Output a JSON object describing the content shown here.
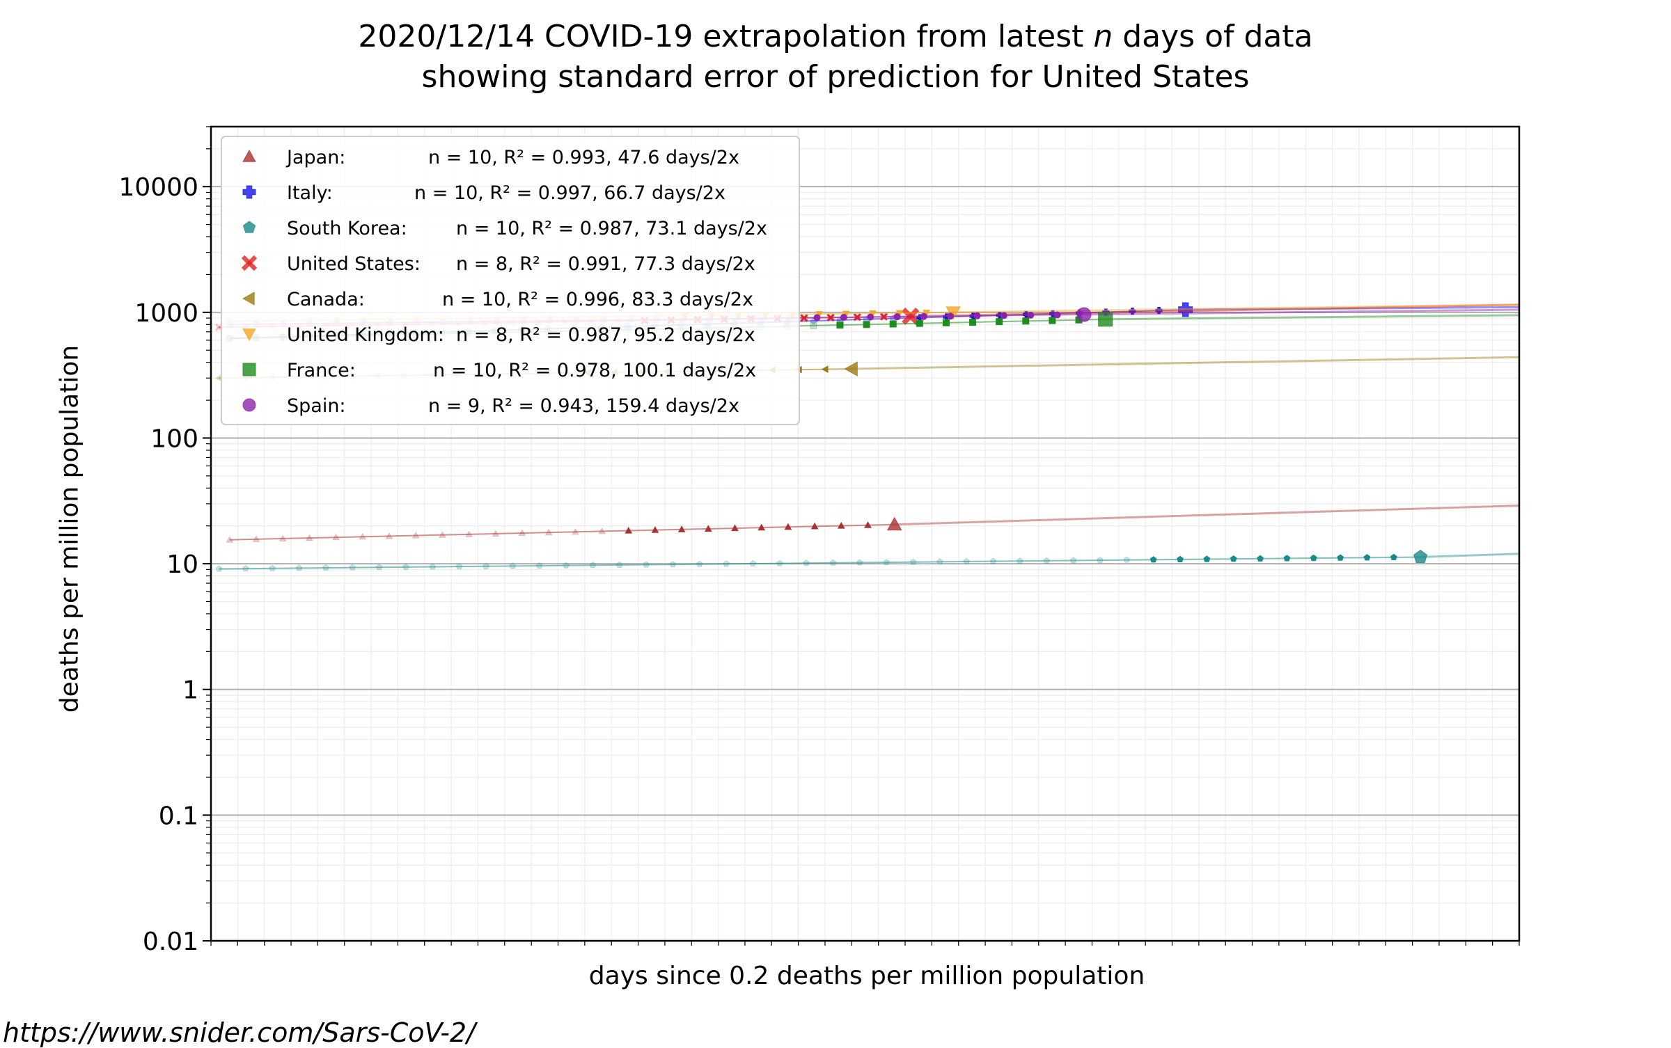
{
  "title_line1_a": "2020/12/14 COVID-19 extrapolation from latest ",
  "title_line1_n": "n",
  "title_line1_b": " days of data",
  "title_line2": "showing standard error of prediction for United States",
  "source_url": "https://www.snider.com/Sars-CoV-2/",
  "chart_data": {
    "type": "scatter",
    "xlabel": "days since 0.2 deaths per million population",
    "ylabel": "deaths per million population",
    "yscale": "log",
    "ylim": [
      0.01,
      30000
    ],
    "yticks": [
      {
        "value": 0.01,
        "label": "0.01"
      },
      {
        "value": 0.1,
        "label": "0.1"
      },
      {
        "value": 1,
        "label": "1"
      },
      {
        "value": 10,
        "label": "10"
      },
      {
        "value": 100,
        "label": "100"
      },
      {
        "value": 1000,
        "label": "1000"
      },
      {
        "value": 10000,
        "label": "10000"
      }
    ],
    "xlim": [
      0,
      49
    ],
    "grid": true,
    "legend_position": "upper-left",
    "series": [
      {
        "name": "Japan:",
        "fit": "n = 10, R² = 0.993, 47.6 days/2x",
        "color": "#a83232",
        "marker": "triangle-up",
        "x_start": 0.7,
        "x_end": 25.6,
        "y_start": 15.5,
        "y_end": 20.5,
        "extrap_to": 29
      },
      {
        "name": "Italy:",
        "fit": "n = 10, R² = 0.997, 66.7 days/2x",
        "color": "#1515e6",
        "marker": "plus",
        "x_start": 0.7,
        "x_end": 36.5,
        "y_start": 620,
        "y_end": 1050,
        "extrap_to": 1100
      },
      {
        "name": "South Korea:",
        "fit": "n = 10, R² = 0.987, 73.1 days/2x",
        "color": "#1a8a8a",
        "marker": "pentagon",
        "x_start": 0.3,
        "x_end": 45.3,
        "y_start": 9.1,
        "y_end": 11.3,
        "extrap_to": 12
      },
      {
        "name": "United States:",
        "fit": "n = 8, R² = 0.991, 77.3 days/2x",
        "color": "#e62020",
        "marker": "x",
        "x_start": 0.3,
        "x_end": 26.2,
        "y_start": 760,
        "y_end": 930,
        "extrap_to": 1150
      },
      {
        "name": "Canada:",
        "fit": "n = 10, R² = 0.996, 83.3 days/2x",
        "color": "#9c7a12",
        "marker": "triangle-left",
        "x_start": 0.3,
        "x_end": 24.0,
        "y_start": 300,
        "y_end": 355,
        "extrap_to": 440
      },
      {
        "name": "United Kingdom:",
        "fit": "n = 8, R² = 0.987, 95.2 days/2x",
        "color": "#f5a623",
        "marker": "triangle-down",
        "x_start": 0.7,
        "x_end": 27.8,
        "y_start": 850,
        "y_end": 1000,
        "extrap_to": 1150
      },
      {
        "name": "France:",
        "fit": "n = 10, R² = 0.978, 100.1 days/2x",
        "color": "#1e8c1e",
        "marker": "square",
        "x_start": 0.7,
        "x_end": 33.5,
        "y_start": 620,
        "y_end": 880,
        "extrap_to": 950
      },
      {
        "name": "Spain:",
        "fit": "n = 9, R² = 0.943, 159.4 days/2x",
        "color": "#8e24aa",
        "marker": "circle",
        "x_start": 0.7,
        "x_end": 32.7,
        "y_start": 800,
        "y_end": 960,
        "extrap_to": 1050
      }
    ]
  }
}
